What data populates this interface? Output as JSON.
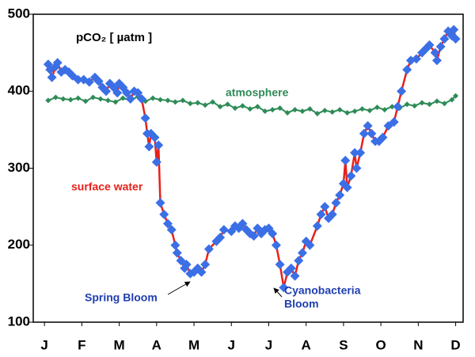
{
  "chart_data": {
    "type": "line",
    "title": "pCO₂ [ µatm ]",
    "xlim": [
      -0.3,
      11.2
    ],
    "xticks": [
      {
        "value": 0,
        "label": "J"
      },
      {
        "value": 1,
        "label": "F"
      },
      {
        "value": 2,
        "label": "M"
      },
      {
        "value": 3,
        "label": "A"
      },
      {
        "value": 4,
        "label": "M"
      },
      {
        "value": 5,
        "label": "J"
      },
      {
        "value": 6,
        "label": "J"
      },
      {
        "value": 7,
        "label": "A"
      },
      {
        "value": 8,
        "label": "S"
      },
      {
        "value": 9,
        "label": "O"
      },
      {
        "value": 10,
        "label": "N"
      },
      {
        "value": 11,
        "label": "D"
      }
    ],
    "ylim": [
      100,
      500
    ],
    "yticks": [
      100,
      200,
      300,
      400,
      500
    ],
    "series": [
      {
        "name": "surface water",
        "color": "#e8201a",
        "marker_color": "#3b6fe6",
        "x": [
          0.1,
          0.15,
          0.2,
          0.3,
          0.35,
          0.45,
          0.55,
          0.65,
          0.75,
          0.9,
          1.05,
          1.2,
          1.35,
          1.45,
          1.55,
          1.65,
          1.75,
          1.85,
          1.95,
          2.0,
          2.1,
          2.2,
          2.3,
          2.4,
          2.5,
          2.6,
          2.7,
          2.75,
          2.8,
          2.85,
          2.95,
          3.0,
          3.05,
          3.1,
          3.2,
          3.3,
          3.4,
          3.5,
          3.55,
          3.65,
          3.75,
          3.8,
          3.9,
          4.0,
          4.1,
          4.2,
          4.3,
          4.4,
          4.6,
          4.7,
          4.8,
          5.0,
          5.1,
          5.2,
          5.3,
          5.4,
          5.5,
          5.6,
          5.7,
          5.8,
          5.9,
          6.0,
          6.1,
          6.2,
          6.3,
          6.4,
          6.5,
          6.6,
          6.7,
          6.8,
          6.9,
          7.0,
          7.1,
          7.3,
          7.4,
          7.5,
          7.6,
          7.7,
          7.8,
          7.9,
          8.0,
          8.05,
          8.1,
          8.2,
          8.3,
          8.35,
          8.45,
          8.55,
          8.65,
          8.75,
          8.85,
          8.95,
          9.05,
          9.2,
          9.35,
          9.45,
          9.55,
          9.7,
          9.8,
          9.95,
          10.1,
          10.2,
          10.3,
          10.45,
          10.5,
          10.6,
          10.7,
          10.8,
          10.9,
          10.95,
          11.0
        ],
        "values": [
          435,
          428,
          418,
          432,
          437,
          425,
          428,
          425,
          420,
          415,
          415,
          412,
          418,
          413,
          405,
          400,
          410,
          405,
          398,
          410,
          405,
          398,
          390,
          400,
          398,
          390,
          365,
          345,
          328,
          345,
          340,
          308,
          330,
          255,
          240,
          228,
          220,
          200,
          190,
          180,
          170,
          175,
          163,
          165,
          170,
          165,
          175,
          195,
          205,
          210,
          220,
          218,
          225,
          222,
          228,
          220,
          215,
          212,
          222,
          215,
          220,
          222,
          215,
          200,
          175,
          145,
          165,
          170,
          160,
          180,
          190,
          205,
          200,
          225,
          240,
          250,
          235,
          240,
          255,
          265,
          280,
          310,
          275,
          290,
          320,
          300,
          320,
          345,
          355,
          345,
          335,
          335,
          340,
          355,
          360,
          380,
          400,
          428,
          440,
          442,
          450,
          455,
          460,
          450,
          440,
          458,
          468,
          478,
          472,
          480,
          468
        ]
      },
      {
        "name": "atmosphere",
        "color": "#2e8b57",
        "marker_color": "#2e8b57",
        "x": [
          0.1,
          0.3,
          0.5,
          0.7,
          0.9,
          1.1,
          1.3,
          1.5,
          1.7,
          1.9,
          2.1,
          2.3,
          2.5,
          2.7,
          2.9,
          3.1,
          3.3,
          3.5,
          3.7,
          3.9,
          4.1,
          4.3,
          4.5,
          4.7,
          4.9,
          5.1,
          5.3,
          5.5,
          5.7,
          5.9,
          6.1,
          6.3,
          6.5,
          6.7,
          6.9,
          7.1,
          7.3,
          7.5,
          7.7,
          7.9,
          8.1,
          8.3,
          8.5,
          8.7,
          8.9,
          9.1,
          9.3,
          9.5,
          9.7,
          9.9,
          10.1,
          10.3,
          10.5,
          10.7,
          10.9,
          11.0
        ],
        "values": [
          388,
          392,
          390,
          389,
          391,
          387,
          392,
          390,
          388,
          386,
          391,
          388,
          393,
          387,
          391,
          389,
          388,
          386,
          388,
          384,
          385,
          382,
          386,
          380,
          383,
          378,
          381,
          377,
          380,
          374,
          376,
          378,
          372,
          376,
          374,
          377,
          371,
          375,
          373,
          376,
          372,
          374,
          377,
          375,
          379,
          376,
          380,
          378,
          383,
          381,
          385,
          383,
          387,
          384,
          389,
          394
        ]
      }
    ],
    "annotations": [
      "Spring Bloom",
      "Cyanobacteria",
      "Bloom"
    ]
  }
}
